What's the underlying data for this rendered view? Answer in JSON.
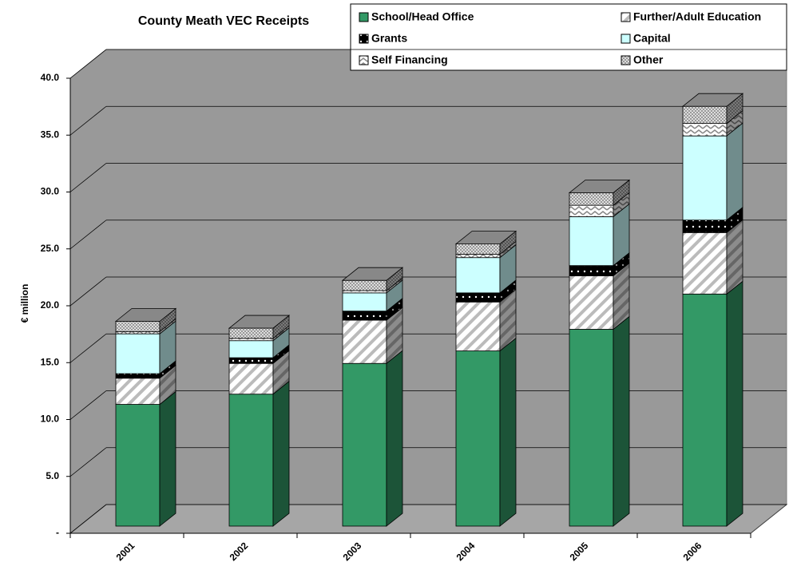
{
  "chart_data": {
    "type": "bar3d_stacked",
    "title": "County Meath VEC Receipts",
    "ylabel": "€ million",
    "categories": [
      "2001",
      "2002",
      "2003",
      "2004",
      "2005",
      "2006"
    ],
    "series": [
      {
        "name": "School/Head Office",
        "color": "#339966",
        "values": [
          10.7,
          11.6,
          14.3,
          15.4,
          17.3,
          20.4
        ]
      },
      {
        "name": "Further/Adult Education",
        "color": "#ffffff",
        "values": [
          2.3,
          2.7,
          3.8,
          4.3,
          4.7,
          5.4
        ]
      },
      {
        "name": "Grants",
        "color": "#000000",
        "values": [
          0.4,
          0.5,
          0.8,
          0.8,
          0.9,
          1.1
        ]
      },
      {
        "name": "Capital",
        "color": "#ccffff",
        "values": [
          3.5,
          1.5,
          1.6,
          3.1,
          4.3,
          7.4
        ]
      },
      {
        "name": "Self Financing",
        "color": "#ffffff",
        "values": [
          0.2,
          0.2,
          0.2,
          0.3,
          1.0,
          1.1
        ]
      },
      {
        "name": "Other",
        "color": "#c0c0c0",
        "values": [
          0.9,
          0.9,
          0.9,
          0.9,
          1.1,
          1.5
        ]
      }
    ],
    "ylim": [
      0,
      40
    ],
    "yticks": [
      {
        "value": 0,
        "label": "-"
      },
      {
        "value": 5,
        "label": "5.0"
      },
      {
        "value": 10,
        "label": "10.0"
      },
      {
        "value": 15,
        "label": "15.0"
      },
      {
        "value": 20,
        "label": "20.0"
      },
      {
        "value": 25,
        "label": "25.0"
      },
      {
        "value": 30,
        "label": "30.0"
      },
      {
        "value": 35,
        "label": "35.0"
      },
      {
        "value": 40,
        "label": "40.0"
      }
    ],
    "grid": true,
    "legend": "top-right"
  }
}
